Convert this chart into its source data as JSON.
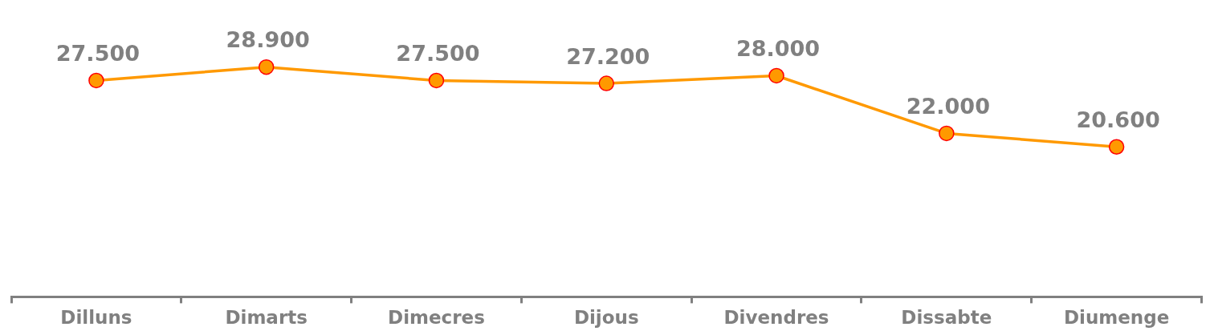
{
  "chart_data": {
    "type": "line",
    "categories": [
      "Dilluns",
      "Dimarts",
      "Dimecres",
      "Dijous",
      "Divendres",
      "Dissabte",
      "Diumenge"
    ],
    "series": [
      {
        "color": "#ff9900",
        "values": [
          27500,
          28900,
          27500,
          27200,
          28000,
          22000,
          20600
        ],
        "value_labels": [
          "27.500",
          "28.900",
          "27.500",
          "27.200",
          "28.000",
          "22.000",
          "20.600"
        ]
      }
    ],
    "marker": "circle",
    "line_style": "solid",
    "tick_labels": "x"
  }
}
